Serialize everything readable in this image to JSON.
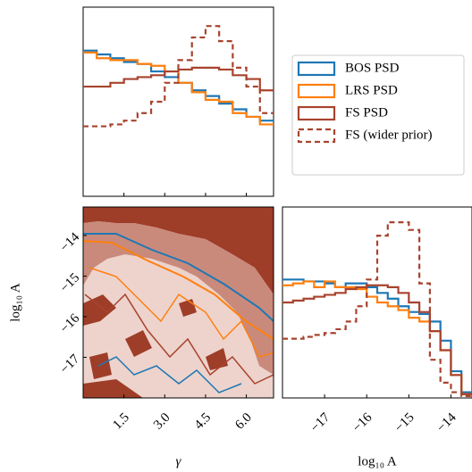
{
  "chart_data": [
    {
      "type": "histogram",
      "bins": [
        0,
        0.5,
        1,
        1.5,
        2,
        2.5,
        3,
        3.5,
        4,
        4.5,
        5,
        5.5,
        6,
        6.5,
        7
      ],
      "xlim": [
        0,
        7
      ],
      "ylim": [
        0,
        1
      ],
      "xticks": [
        1.5,
        3,
        4.5,
        6
      ],
      "legend": "right",
      "series": [
        {
          "name": "BOS PSD",
          "color": "#1f77b4",
          "dash": false,
          "values": [
            0.77,
            0.75,
            0.73,
            0.71,
            0.7,
            0.66,
            0.63,
            0.6,
            0.56,
            0.53,
            0.49,
            0.46,
            0.42,
            0.4
          ]
        },
        {
          "name": "LRS PSD",
          "color": "#ff7f0e",
          "dash": false,
          "values": [
            0.76,
            0.73,
            0.72,
            0.72,
            0.7,
            0.69,
            0.66,
            0.6,
            0.55,
            0.51,
            0.5,
            0.44,
            0.42,
            0.38
          ]
        },
        {
          "name": "FS PSD",
          "color": "#a8432e",
          "dash": false,
          "values": [
            0.58,
            0.58,
            0.6,
            0.62,
            0.63,
            0.64,
            0.66,
            0.67,
            0.68,
            0.68,
            0.67,
            0.64,
            0.62,
            0.56
          ]
        },
        {
          "name": "FS (wider prior)",
          "color": "#a8432e",
          "dash": true,
          "values": [
            0.37,
            0.37,
            0.38,
            0.4,
            0.44,
            0.5,
            0.6,
            0.72,
            0.84,
            0.9,
            0.82,
            0.68,
            0.58,
            0.44
          ]
        }
      ]
    },
    {
      "type": "contour",
      "xlabel": "γ",
      "ylabel": "log₁₀ A",
      "xlim": [
        0,
        7
      ],
      "ylim": [
        -18,
        -13.3
      ],
      "xticks": [
        1.5,
        {
          "value": 3,
          "label": "3.0"
        },
        4.5,
        {
          "value": 6,
          "label": "6.0"
        }
      ],
      "yticks": [
        {
          "value": -17,
          "label": "−17"
        },
        {
          "value": -16,
          "label": "−16"
        },
        {
          "value": -15,
          "label": "−15"
        },
        {
          "value": -14,
          "label": "−14"
        }
      ]
    },
    {
      "type": "histogram",
      "xlabel": "log₁₀ A",
      "bins": [
        -18,
        -17.75,
        -17.5,
        -17.25,
        -17,
        -16.75,
        -16.5,
        -16.25,
        -16,
        -15.75,
        -15.5,
        -15.25,
        -15,
        -14.75,
        -14.5,
        -14.25,
        -14,
        -13.75,
        -13.5
      ],
      "xlim": [
        -18,
        -13.5
      ],
      "ylim": [
        0,
        1
      ],
      "xticks": [
        {
          "value": -17,
          "label": "−17"
        },
        {
          "value": -16,
          "label": "−16"
        },
        {
          "value": -15,
          "label": "−15"
        },
        {
          "value": -14,
          "label": "−14"
        }
      ],
      "series": [
        {
          "color": "#1f77b4",
          "dash": false,
          "values": [
            0.62,
            0.62,
            0.61,
            0.61,
            0.6,
            0.58,
            0.6,
            0.6,
            0.58,
            0.55,
            0.52,
            0.48,
            0.45,
            0.44,
            0.4,
            0.3,
            0.14,
            0.03
          ]
        },
        {
          "color": "#ff7f0e",
          "dash": false,
          "values": [
            0.59,
            0.6,
            0.61,
            0.58,
            0.61,
            0.58,
            0.58,
            0.57,
            0.53,
            0.5,
            0.48,
            0.46,
            0.42,
            0.4,
            0.35,
            0.25,
            0.12,
            0.02
          ]
        },
        {
          "color": "#a8432e",
          "dash": false,
          "values": [
            0.5,
            0.51,
            0.52,
            0.53,
            0.54,
            0.55,
            0.57,
            0.58,
            0.59,
            0.59,
            0.58,
            0.55,
            0.5,
            0.45,
            0.35,
            0.25,
            0.12,
            0.02
          ]
        },
        {
          "color": "#a8432e",
          "dash": true,
          "values": [
            0.31,
            0.31,
            0.32,
            0.33,
            0.34,
            0.36,
            0.4,
            0.48,
            0.62,
            0.85,
            0.92,
            0.92,
            0.88,
            0.6,
            0.2,
            0.08,
            0.03,
            0.01
          ]
        }
      ]
    }
  ]
}
